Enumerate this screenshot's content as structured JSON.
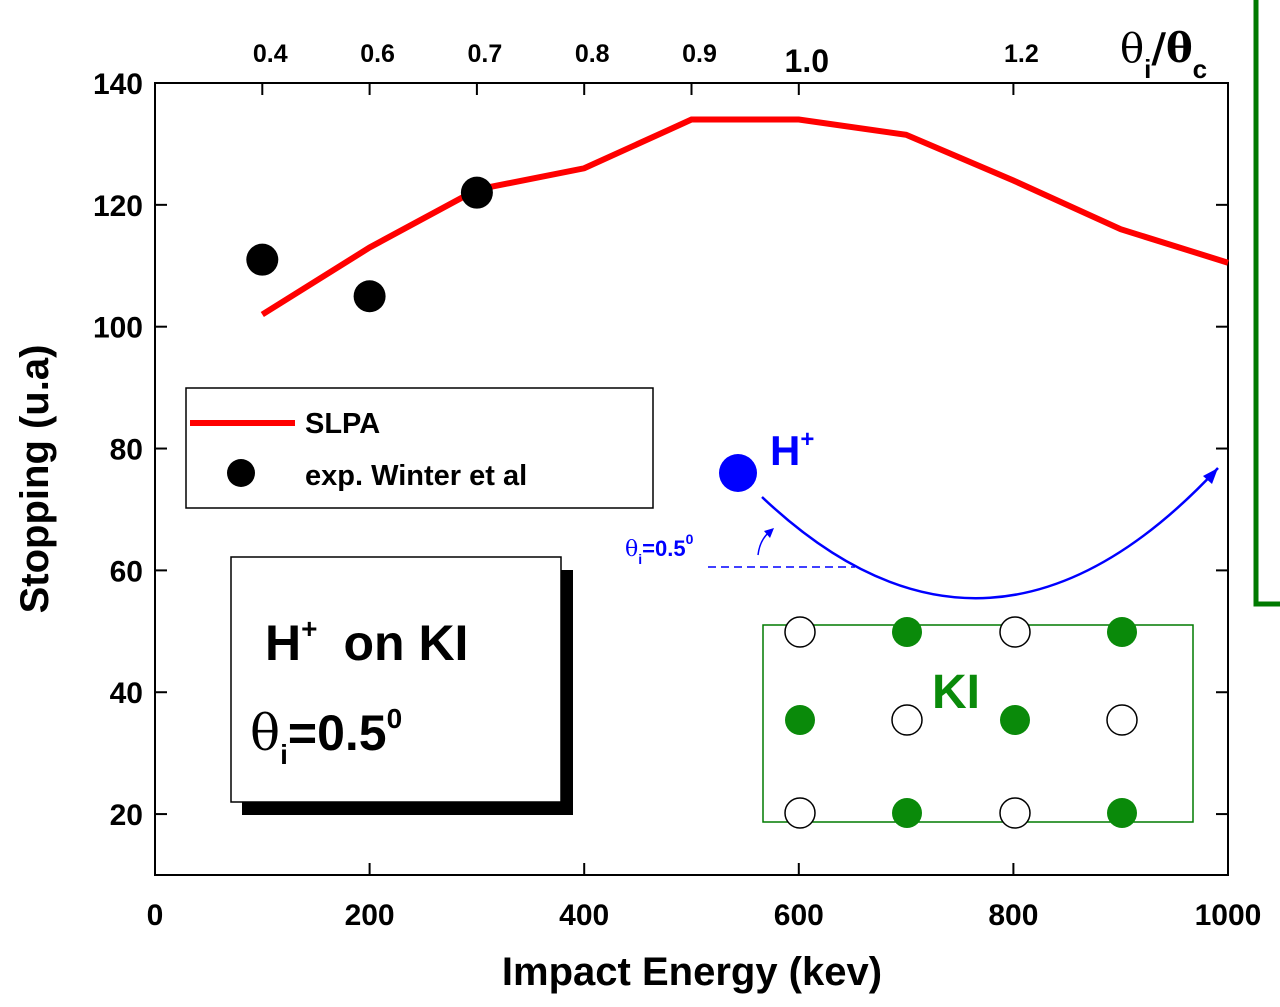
{
  "chart_data": {
    "type": "line",
    "x_label": "Impact Energy (kev)",
    "y_label": "Stopping (u.a)",
    "xlim": [
      0,
      1000
    ],
    "ylim": [
      10,
      140
    ],
    "xticks": [
      0,
      200,
      400,
      600,
      800,
      1000
    ],
    "yticks": [
      20,
      40,
      60,
      80,
      100,
      120,
      140
    ],
    "top_ticks": [
      {
        "value": 100,
        "label": "0.4"
      },
      {
        "value": 200,
        "label": "0.6"
      },
      {
        "value": 300,
        "label": "0.7"
      },
      {
        "value": 400,
        "label": "0.8"
      },
      {
        "value": 500,
        "label": "0.9"
      },
      {
        "value": 600,
        "label": "1.0"
      },
      {
        "value": 800,
        "label": "1.2"
      }
    ],
    "top_label": {
      "num": "θ",
      "num_sub": "i",
      "slash": "/θ",
      "den_sub": "c"
    },
    "legend": "upper left",
    "series": [
      {
        "name": "SLPA",
        "color": "#ff0000",
        "style": "line",
        "x": [
          100,
          200,
          300,
          400,
          500,
          600,
          700,
          800,
          900,
          1000
        ],
        "values": [
          102,
          113,
          122.5,
          126,
          134,
          134,
          131.5,
          124,
          116,
          110.5
        ]
      },
      {
        "name": "exp. Winter et al",
        "color": "#000000",
        "style": "scatter",
        "x": [
          100,
          200,
          300
        ],
        "values": [
          111,
          105,
          122
        ]
      }
    ],
    "inset": {
      "ion": "H",
      "charge": "+",
      "target": "on KI",
      "angle": "θ",
      "angle_sub": "i",
      "angle_value": "=0.5",
      "angle_sup": "0"
    },
    "diagram": {
      "ion": "H",
      "charge": "+",
      "angle": "θ",
      "angle_sub": "i",
      "angle_value": "=0.5",
      "angle_sup": "0",
      "crystal": "KI"
    }
  }
}
